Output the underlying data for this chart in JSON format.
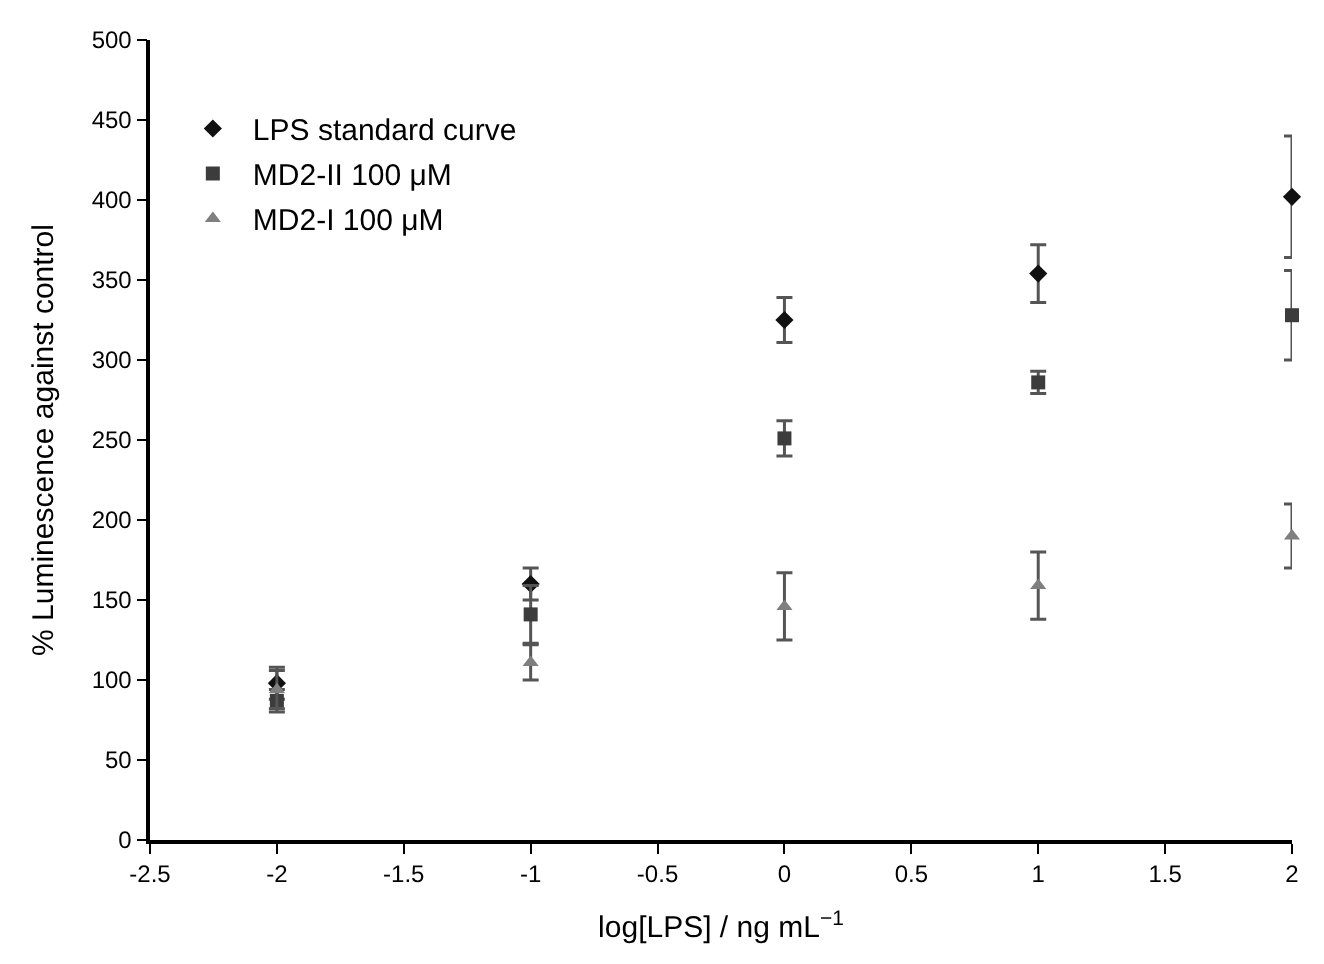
{
  "chart_data": {
    "type": "scatter",
    "xlabel": "log[LPS] / ng mL$^{−1}$",
    "ylabel": "% Luminescence against control",
    "x": [
      -2,
      -1,
      0,
      1,
      2
    ],
    "series": [
      {
        "name": "LPS standard curve",
        "color": "#111111",
        "marker": "diamond",
        "values": [
          98,
          160,
          325,
          354,
          402
        ],
        "errors": [
          10,
          10,
          14,
          18,
          38
        ]
      },
      {
        "name": "MD2-II 100 μM",
        "color": "#3c3c3c",
        "marker": "square",
        "values": [
          87,
          141,
          251,
          286,
          328
        ],
        "errors": [
          7,
          18,
          11,
          7,
          28
        ]
      },
      {
        "name": "MD2-I 100 μM",
        "color": "#7f7f7f",
        "marker": "triangle",
        "values": [
          94,
          111,
          146,
          159,
          190
        ],
        "errors": [
          12,
          11,
          21,
          21,
          20
        ]
      }
    ],
    "xlim": [
      -2.5,
      2
    ],
    "xticks": [
      -2.5,
      -2,
      -1.5,
      -1,
      -0.5,
      0,
      0.5,
      1,
      1.5,
      2
    ],
    "ylim": [
      0,
      500
    ],
    "yticks": [
      0,
      50,
      100,
      150,
      200,
      250,
      300,
      350,
      400,
      450,
      500
    ],
    "legend": "top left"
  }
}
